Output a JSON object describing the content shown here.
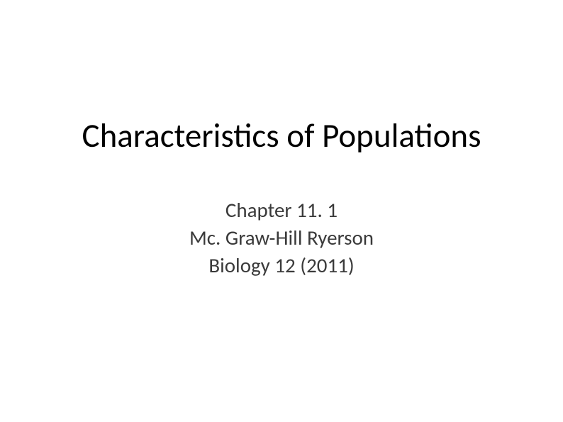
{
  "slide": {
    "title": "Characteristics of Populations",
    "subtitle": {
      "line1": "Chapter 11. 1",
      "line2": "Mc. Graw-Hill Ryerson",
      "line3": "Biology 12 (2011)"
    },
    "colors": {
      "background": "#ffffff",
      "title_text": "#000000",
      "subtitle_text": "#3a3a3a"
    },
    "typography": {
      "title_fontsize": 47,
      "subtitle_fontsize": 29,
      "font_family": "Calibri"
    }
  }
}
